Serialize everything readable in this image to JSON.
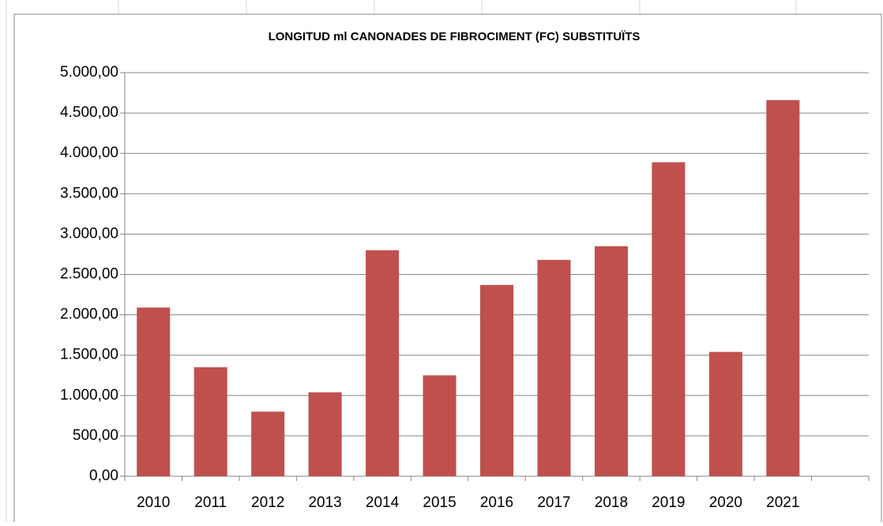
{
  "chart_data": {
    "type": "bar",
    "title": "LONGITUD ml CANONADES DE FIBROCIMENT (FC) SUBSTITUÏTS",
    "categories": [
      "2010",
      "2011",
      "2012",
      "2013",
      "2014",
      "2015",
      "2016",
      "2017",
      "2018",
      "2019",
      "2020",
      "2021",
      null
    ],
    "values": [
      2090,
      1350,
      800,
      1040,
      2800,
      1250,
      2370,
      2680,
      2850,
      3890,
      1540,
      4660,
      null
    ],
    "color": "#c0504d",
    "ylim": [
      0,
      5000
    ],
    "yticks": [
      {
        "value": 0,
        "label": "0,00"
      },
      {
        "value": 500,
        "label": "500,00"
      },
      {
        "value": 1000,
        "label": "1.000,00"
      },
      {
        "value": 1500,
        "label": "1.500,00"
      },
      {
        "value": 2000,
        "label": "2.000,00"
      },
      {
        "value": 2500,
        "label": "2.500,00"
      },
      {
        "value": 3000,
        "label": "3.000,00"
      },
      {
        "value": 3500,
        "label": "3.500,00"
      },
      {
        "value": 4000,
        "label": "4.000,00"
      },
      {
        "value": 4500,
        "label": "4.500,00"
      },
      {
        "value": 5000,
        "label": "5.000,00"
      }
    ],
    "grid": true
  }
}
